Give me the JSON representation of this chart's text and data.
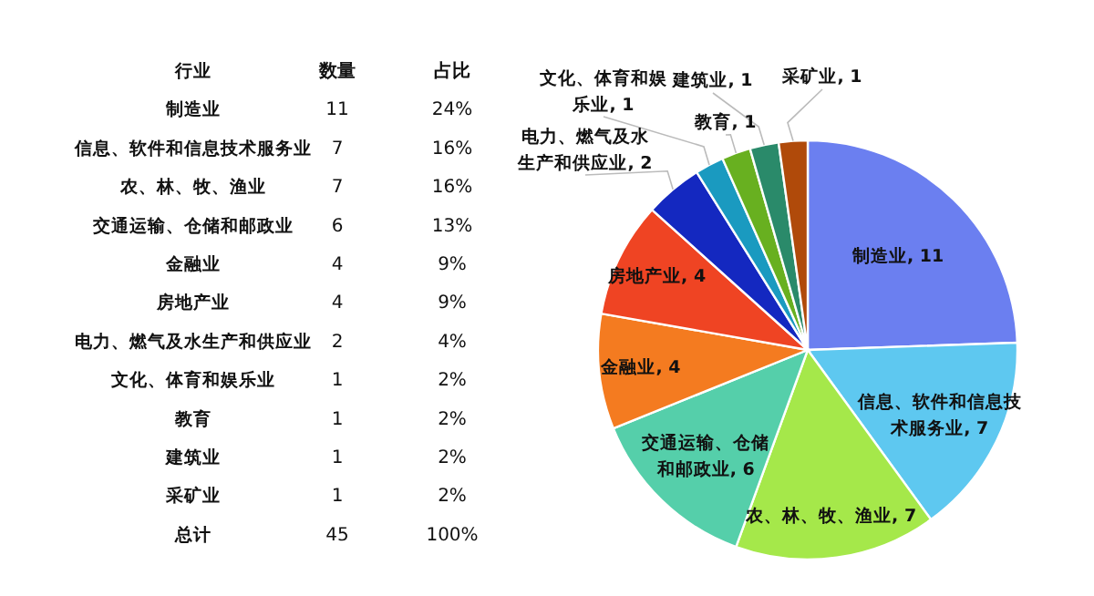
{
  "chart_data": [
    {
      "type": "other",
      "annotations": [
        "行业",
        "数量",
        "占比",
        "制造业",
        "11",
        "24%",
        "信息、软件和信息技术服务业",
        "7",
        "16%",
        "农、林、牧、渔业",
        "7",
        "16%",
        "交通运输、仓储和邮政业",
        "6",
        "13%",
        "金融业",
        "4",
        "9%",
        "房地产业",
        "4",
        "9%",
        "电力、燃气及水生产和供应业",
        "2",
        "4%",
        "文化、体育和娱乐业",
        "1",
        "2%",
        "教育",
        "1",
        "2%",
        "建筑业",
        "1",
        "2%",
        "采矿业",
        "1",
        "2%",
        "总计",
        "45",
        "100%"
      ]
    },
    {
      "type": "pie",
      "categories": [
        null,
        null,
        null,
        null,
        null,
        null,
        null,
        null,
        null,
        null,
        null
      ],
      "values": [
        11,
        7,
        7,
        6,
        4,
        4,
        2,
        1,
        1,
        1,
        1
      ],
      "colors": [
        "#6b7ff0",
        "#5ec8f0",
        "#a5e84a",
        "#55cfaa",
        "#f47b20",
        "#ef4423",
        "#1428c0",
        "#1a9ac0",
        "#68b020",
        "#2a8a6a",
        "#b04a0a"
      ],
      "value_labels": [
        "制造业, 11",
        "信息、软件和信息技术服务业, 7",
        "农、林、牧、渔业, 7",
        "交通运输、仓储和邮政业, 6",
        "金融业, 4",
        "房地产业, 4",
        "电力、燃气及水生产和供应业, 2",
        "文化、体育和娱乐业, 1",
        "教育, 1",
        "建筑业, 1",
        "采矿业, 1"
      ]
    }
  ]
}
